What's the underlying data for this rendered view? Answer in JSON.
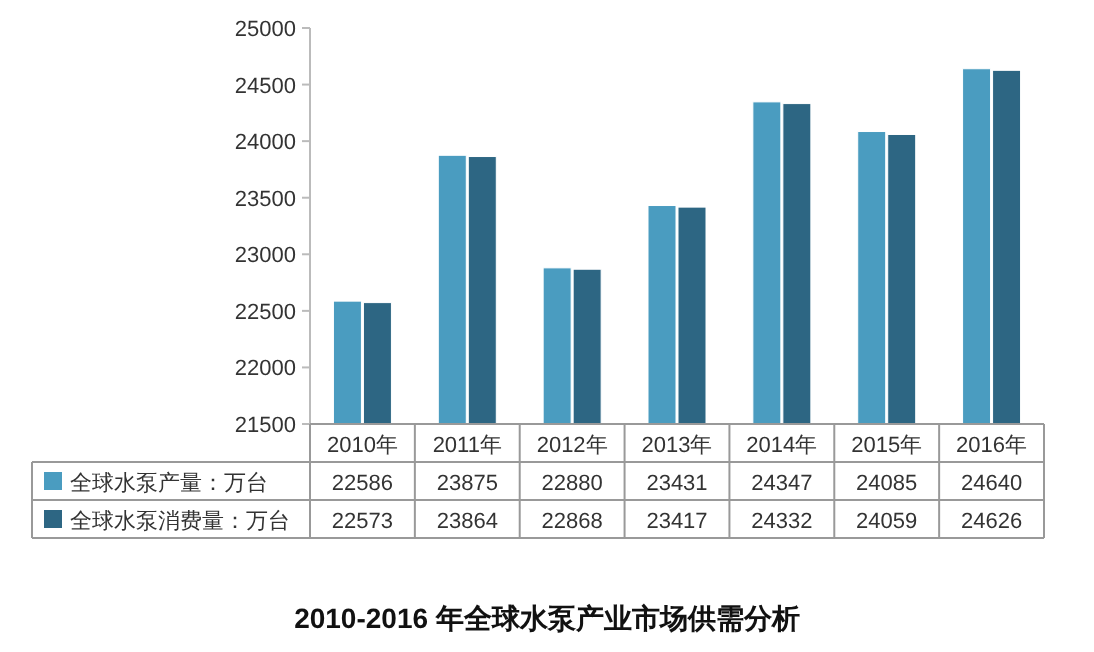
{
  "chart_data": {
    "type": "bar",
    "title": "2010-2016 年全球水泵产业市场供需分析",
    "categories": [
      "2010年",
      "2011年",
      "2012年",
      "2013年",
      "2014年",
      "2015年",
      "2016年"
    ],
    "series": [
      {
        "name": "全球水泵产量：万台",
        "color": "#4a9cc0",
        "values": [
          22586,
          23875,
          22880,
          23431,
          24347,
          24085,
          24640
        ]
      },
      {
        "name": "全球水泵消费量：万台",
        "color": "#2d6683",
        "values": [
          22573,
          23864,
          22868,
          23417,
          24332,
          24059,
          24626
        ]
      }
    ],
    "ylim": [
      21500,
      25000
    ],
    "yticks": [
      21500,
      22000,
      22500,
      23000,
      23500,
      24000,
      24500,
      25000
    ],
    "data_labels": true,
    "legend": "bottom"
  }
}
